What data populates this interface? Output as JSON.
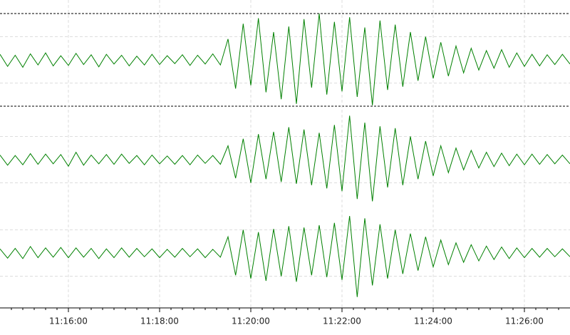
{
  "chart_data": {
    "type": "line",
    "xlim": [
      "11:14:30",
      "11:27:00"
    ],
    "xticks": [
      "11:16:00",
      "11:18:00",
      "11:20:00",
      "11:22:00",
      "11:24:00",
      "11:26:00"
    ],
    "xminorticks": [
      "11:14:45",
      "11:15:00",
      "11:15:15",
      "11:15:30",
      "11:15:45",
      "11:16:15",
      "11:16:30",
      "11:16:45",
      "11:17:00",
      "11:17:15",
      "11:17:30",
      "11:17:45",
      "11:18:15",
      "11:18:30",
      "11:18:45",
      "11:19:00",
      "11:19:15",
      "11:19:30",
      "11:19:45",
      "11:20:15",
      "11:20:30",
      "11:20:45",
      "11:21:00",
      "11:21:15",
      "11:21:30",
      "11:21:45",
      "11:22:15",
      "11:22:30",
      "11:22:45",
      "11:23:00",
      "11:23:15",
      "11:23:30",
      "11:23:45",
      "11:24:15",
      "11:24:30",
      "11:24:45",
      "11:25:00",
      "11:25:15",
      "11:25:30",
      "11:25:45",
      "11:26:15",
      "11:26:30",
      "11:26:45"
    ],
    "grid": true,
    "x": [
      "11:14:30",
      "11:14:40",
      "11:14:50",
      "11:15:00",
      "11:15:10",
      "11:15:20",
      "11:15:30",
      "11:15:40",
      "11:15:50",
      "11:16:00",
      "11:16:10",
      "11:16:20",
      "11:16:30",
      "11:16:40",
      "11:16:50",
      "11:17:00",
      "11:17:10",
      "11:17:20",
      "11:17:30",
      "11:17:40",
      "11:17:50",
      "11:18:00",
      "11:18:10",
      "11:18:20",
      "11:18:30",
      "11:18:40",
      "11:18:50",
      "11:19:00",
      "11:19:10",
      "11:19:20",
      "11:19:30",
      "11:19:40",
      "11:19:50",
      "11:20:00",
      "11:20:10",
      "11:20:20",
      "11:20:30",
      "11:20:40",
      "11:20:50",
      "11:21:00",
      "11:21:10",
      "11:21:20",
      "11:21:30",
      "11:21:40",
      "11:21:50",
      "11:22:00",
      "11:22:10",
      "11:22:20",
      "11:22:30",
      "11:22:40",
      "11:22:50",
      "11:23:00",
      "11:23:10",
      "11:23:20",
      "11:23:30",
      "11:23:40",
      "11:23:50",
      "11:24:00",
      "11:24:10",
      "11:24:20",
      "11:24:30",
      "11:24:40",
      "11:24:50",
      "11:25:00",
      "11:25:10",
      "11:25:20",
      "11:25:30",
      "11:25:40",
      "11:25:50",
      "11:26:00",
      "11:26:10",
      "11:26:20",
      "11:26:30",
      "11:26:40",
      "11:26:50",
      "11:27:00"
    ],
    "series": [
      {
        "color": "#008000",
        "ylim": [
          -100,
          100
        ],
        "yticks": [
          -50,
          50
        ],
        "values": [
          12,
          -14,
          10,
          -16,
          13,
          -11,
          15,
          -13,
          9,
          -12,
          14,
          -10,
          11,
          -15,
          12,
          -9,
          10,
          -13,
          8,
          -11,
          12,
          -10,
          9,
          -8,
          11,
          -12,
          10,
          -9,
          13,
          -11,
          45,
          -62,
          78,
          -55,
          90,
          -70,
          60,
          -85,
          72,
          -95,
          88,
          -60,
          100,
          -75,
          82,
          -68,
          92,
          -80,
          70,
          -98,
          85,
          -65,
          76,
          -58,
          60,
          -45,
          50,
          -40,
          38,
          -35,
          30,
          -28,
          25,
          -22,
          20,
          -18,
          22,
          -16,
          15,
          -14,
          12,
          -13,
          11,
          -10,
          12,
          -9
        ]
      },
      {
        "color": "#008000",
        "ylim": [
          -100,
          100
        ],
        "yticks": [
          -50,
          50
        ],
        "values": [
          10,
          -12,
          9,
          -11,
          13,
          -10,
          12,
          -9,
          11,
          -14,
          16,
          -12,
          10,
          -9,
          11,
          -10,
          12,
          -8,
          9,
          -11,
          10,
          -9,
          8,
          -10,
          9,
          -11,
          10,
          -8,
          9,
          -10,
          30,
          -40,
          45,
          -50,
          55,
          -42,
          60,
          -48,
          70,
          -52,
          65,
          -55,
          58,
          -62,
          75,
          -68,
          95,
          -85,
          80,
          -90,
          72,
          -60,
          68,
          -55,
          50,
          -42,
          40,
          -35,
          30,
          -28,
          25,
          -22,
          20,
          -18,
          16,
          -15,
          14,
          -13,
          12,
          -11,
          12,
          -10,
          11,
          -9,
          10,
          -9
        ]
      },
      {
        "color": "#008000",
        "ylim": [
          -100,
          100
        ],
        "yticks": [
          -50,
          50
        ],
        "values": [
          9,
          -11,
          10,
          -12,
          14,
          -10,
          11,
          -9,
          12,
          -10,
          11,
          -9,
          10,
          -12,
          9,
          -10,
          11,
          -9,
          10,
          -8,
          9,
          -10,
          8,
          -9,
          10,
          -8,
          9,
          -10,
          8,
          -9,
          35,
          -48,
          50,
          -55,
          45,
          -60,
          52,
          -50,
          58,
          -62,
          55,
          -48,
          60,
          -52,
          65,
          -58,
          80,
          -95,
          75,
          -70,
          62,
          -55,
          50,
          -45,
          42,
          -38,
          35,
          -30,
          28,
          -25,
          22,
          -20,
          18,
          -17,
          15,
          -14,
          13,
          -12,
          11,
          -10,
          10,
          -9,
          10,
          -8,
          9,
          -8
        ]
      }
    ]
  }
}
